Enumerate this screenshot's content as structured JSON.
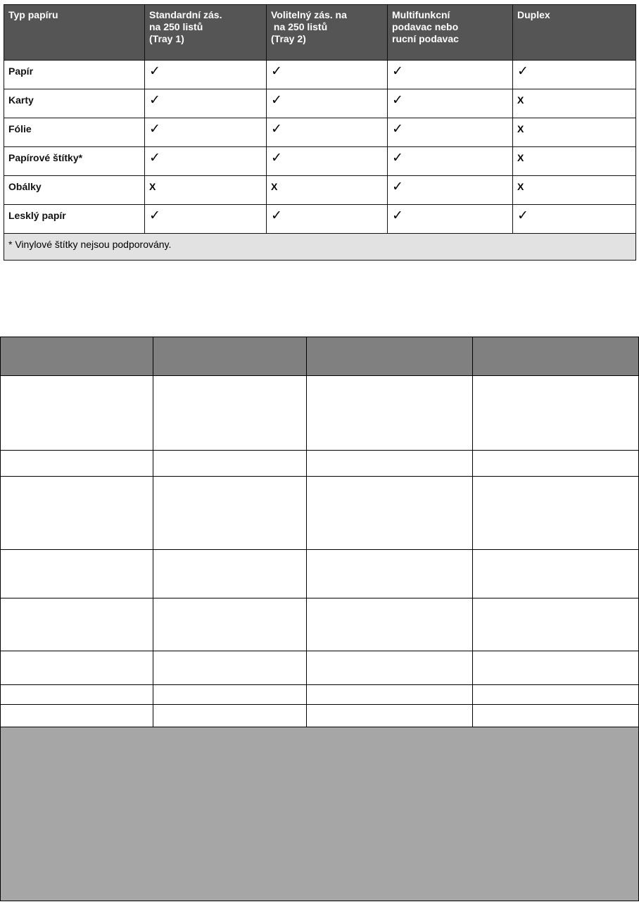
{
  "table1": {
    "headers": [
      "Typ papíru",
      "Standardní zás. na 250 listů (Tray 1)",
      "Volitelný zás. na na 250 listů (Tray 2)",
      "Multifunkcní podavac nebo rucní podavac",
      "Duplex"
    ],
    "header_lines": [
      [
        "Typ papíru"
      ],
      [
        "Standardní zás.",
        "na 250 listů",
        "(Tray 1)"
      ],
      [
        "Volitelný zás. na",
        " na 250 listů",
        "(Tray 2)"
      ],
      [
        "Multifunkcní",
        "podavac nebo",
        "rucní podavac"
      ],
      [
        "Duplex"
      ]
    ],
    "rows": [
      {
        "label": "Papír",
        "cells": [
          "✓",
          "✓",
          "✓",
          "✓"
        ]
      },
      {
        "label": "Karty",
        "cells": [
          "✓",
          "✓",
          "✓",
          "X"
        ]
      },
      {
        "label": "Fólie",
        "cells": [
          "✓",
          "✓",
          "✓",
          "X"
        ]
      },
      {
        "label": "Papírové štítky*",
        "cells": [
          "✓",
          "✓",
          "✓",
          "X"
        ]
      },
      {
        "label": "Obálky",
        "cells": [
          "X",
          "X",
          "✓",
          "X"
        ]
      },
      {
        "label": "Lesklý papír",
        "cells": [
          "✓",
          "✓",
          "✓",
          "✓"
        ]
      }
    ],
    "footnote": "* Vinylové štítky nejsou podporovány.",
    "colors": {
      "header_bg": "#555555",
      "footnote_bg": "#e2e2e2"
    }
  },
  "table2": {
    "columns": 4,
    "empty_rows": 8,
    "colors": {
      "header_bg": "#808080",
      "bottom_bg": "#a6a6a6"
    }
  }
}
